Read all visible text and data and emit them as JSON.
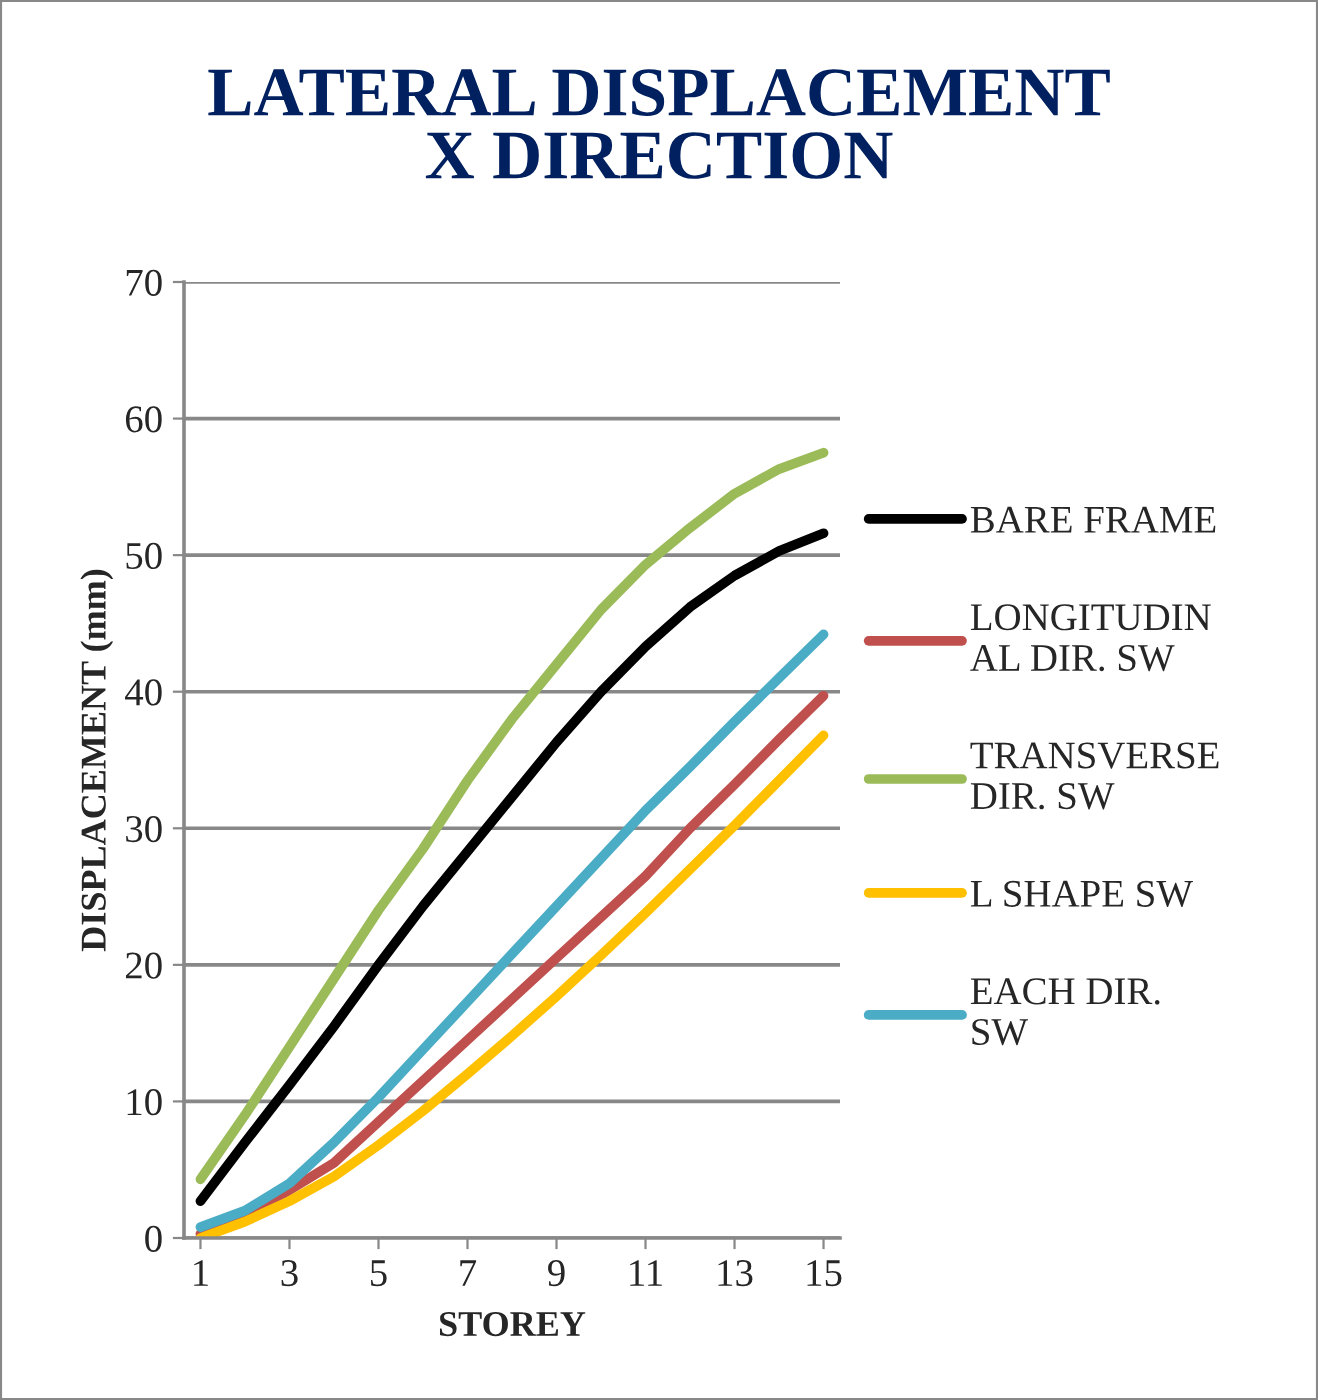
{
  "chart_data": {
    "type": "line",
    "title": "LATERAL DISPLACEMENT\nX DIRECTION",
    "xlabel": "STOREY",
    "ylabel": "DISPLACEMENT (mm)",
    "x": [
      1,
      2,
      3,
      4,
      5,
      6,
      7,
      8,
      9,
      10,
      11,
      12,
      13,
      14,
      15
    ],
    "series": [
      {
        "name": "BARE FRAME",
        "color": "#000000",
        "values": [
          2.7,
          7,
          11.2,
          15.5,
          20,
          24.3,
          28.3,
          32.3,
          36.3,
          40,
          43.3,
          46.2,
          48.5,
          50.3,
          51.6
        ]
      },
      {
        "name": "LONGITUDINAL DIR. SW",
        "color": "#c0504d",
        "values": [
          0.3,
          1.7,
          3.5,
          5.5,
          8.5,
          11.5,
          14.5,
          17.5,
          20.5,
          23.5,
          26.5,
          30,
          33.2,
          36.5,
          39.7
        ]
      },
      {
        "name": "TRANSVERSE DIR. SW",
        "color": "#9bbb59",
        "values": [
          4.3,
          9,
          14,
          19,
          24,
          28.5,
          33.5,
          38,
          42,
          46,
          49.3,
          52,
          54.5,
          56.3,
          57.5
        ]
      },
      {
        "name": "L SHAPE SW",
        "color": "#ffc000",
        "values": [
          0,
          1.2,
          2.7,
          4.5,
          6.8,
          9.3,
          12,
          14.8,
          17.7,
          20.7,
          23.8,
          27,
          30.2,
          33.5,
          36.8
        ]
      },
      {
        "name": "EACH DIR. SW",
        "color": "#4bacc6",
        "values": [
          0.8,
          2,
          4,
          7,
          10.3,
          13.8,
          17.3,
          20.8,
          24.3,
          27.8,
          31.3,
          34.5,
          37.8,
          41,
          44.2
        ]
      }
    ],
    "xlim": [
      0.63,
      15.37
    ],
    "xticks": [
      1,
      3,
      5,
      7,
      9,
      11,
      13,
      15
    ],
    "ylim": [
      0,
      70
    ],
    "yticks": [
      0,
      10,
      20,
      30,
      40,
      50,
      60,
      70
    ],
    "grid": "y",
    "legend": "right",
    "marker": "none",
    "line_style": "solid"
  }
}
